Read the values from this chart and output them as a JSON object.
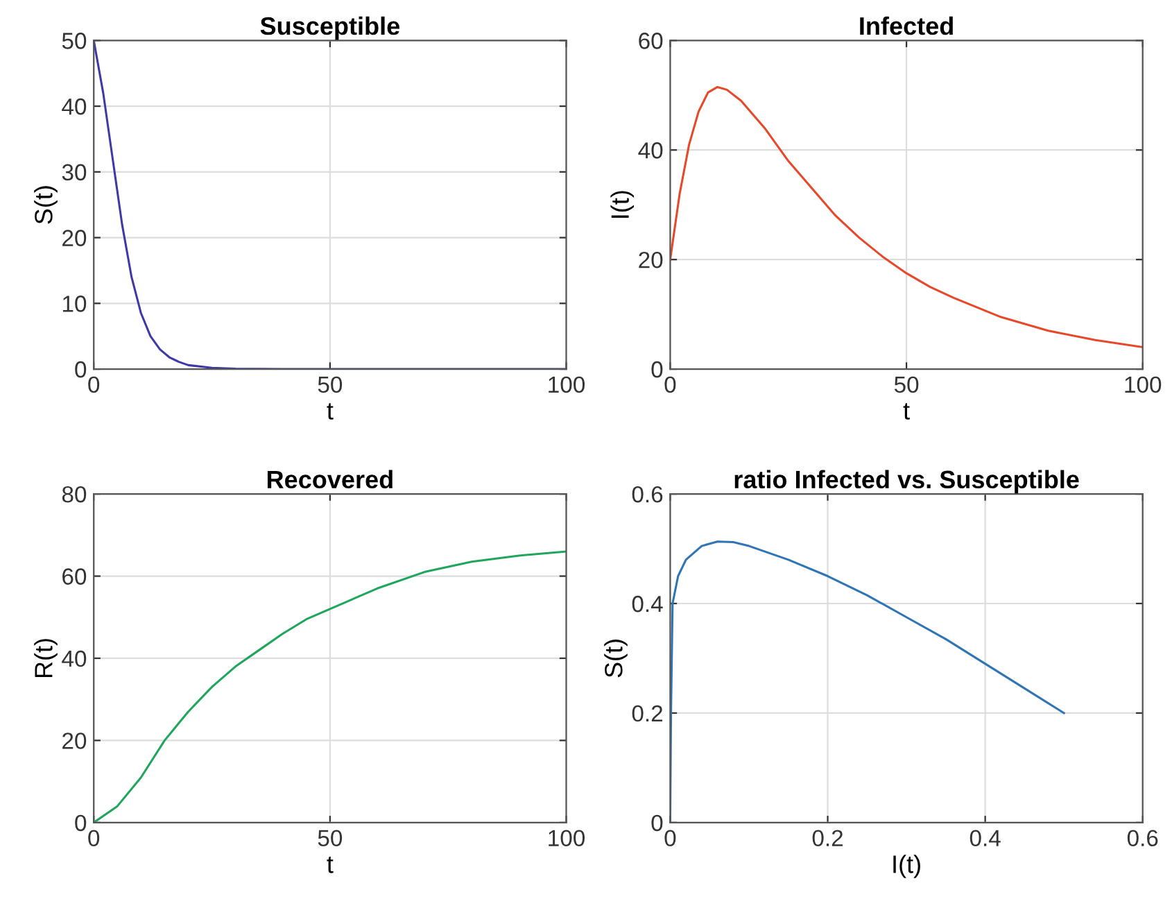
{
  "chart_data": [
    {
      "type": "line",
      "title": "Susceptible",
      "xlabel": "t",
      "ylabel": "S(t)",
      "xlim": [
        0,
        100
      ],
      "ylim": [
        0,
        50
      ],
      "xticks": [
        0,
        50,
        100
      ],
      "yticks": [
        0,
        10,
        20,
        30,
        40,
        50
      ],
      "grid": true,
      "series": [
        {
          "color": "#3d3aa8",
          "x": [
            0,
            2,
            4,
            6,
            8,
            10,
            12,
            14,
            16,
            18,
            20,
            25,
            30,
            40,
            100
          ],
          "values": [
            50,
            42,
            32,
            22,
            14,
            8.5,
            5,
            3,
            1.8,
            1.1,
            0.6,
            0.2,
            0.05,
            0,
            0
          ]
        }
      ]
    },
    {
      "type": "line",
      "title": "Infected",
      "xlabel": "t",
      "ylabel": "I(t)",
      "xlim": [
        0,
        100
      ],
      "ylim": [
        0,
        60
      ],
      "xticks": [
        0,
        50,
        100
      ],
      "yticks": [
        0,
        20,
        40,
        60
      ],
      "grid": true,
      "series": [
        {
          "color": "#e8482a",
          "x": [
            0,
            2,
            4,
            6,
            8,
            10,
            12,
            15,
            20,
            25,
            30,
            35,
            40,
            45,
            50,
            55,
            60,
            70,
            80,
            90,
            100
          ],
          "values": [
            20,
            32,
            41,
            47,
            50.5,
            51.5,
            51,
            49,
            44,
            38,
            33,
            28,
            24,
            20.5,
            17.5,
            15,
            13,
            9.5,
            7,
            5.3,
            4
          ]
        }
      ]
    },
    {
      "type": "line",
      "title": "Recovered",
      "xlabel": "t",
      "ylabel": "R(t)",
      "xlim": [
        0,
        100
      ],
      "ylim": [
        0,
        80
      ],
      "xticks": [
        0,
        50,
        100
      ],
      "yticks": [
        0,
        20,
        40,
        60,
        80
      ],
      "grid": true,
      "series": [
        {
          "color": "#1fa65c",
          "x": [
            0,
            5,
            10,
            15,
            20,
            25,
            30,
            35,
            40,
            45,
            50,
            60,
            70,
            80,
            90,
            100
          ],
          "values": [
            0,
            4,
            11,
            20,
            27,
            33,
            38,
            42,
            46,
            49.5,
            52,
            57,
            61,
            63.5,
            65,
            66
          ]
        }
      ]
    },
    {
      "type": "line",
      "title": "ratio Infected vs. Susceptible",
      "xlabel": "I(t)",
      "ylabel": "S(t)",
      "xlim": [
        0,
        0.6
      ],
      "ylim": [
        0,
        0.6
      ],
      "xticks": [
        0,
        0.2,
        0.4,
        0.6
      ],
      "yticks": [
        0,
        0.2,
        0.4,
        0.6
      ],
      "grid": true,
      "series": [
        {
          "color": "#2f75b5",
          "x": [
            0,
            0.001,
            0.003,
            0.01,
            0.02,
            0.04,
            0.06,
            0.08,
            0.1,
            0.15,
            0.2,
            0.25,
            0.3,
            0.35,
            0.4,
            0.45,
            0.5
          ],
          "values": [
            0,
            0.2,
            0.4,
            0.45,
            0.48,
            0.505,
            0.513,
            0.512,
            0.505,
            0.48,
            0.45,
            0.415,
            0.375,
            0.335,
            0.29,
            0.245,
            0.2
          ]
        }
      ]
    }
  ]
}
